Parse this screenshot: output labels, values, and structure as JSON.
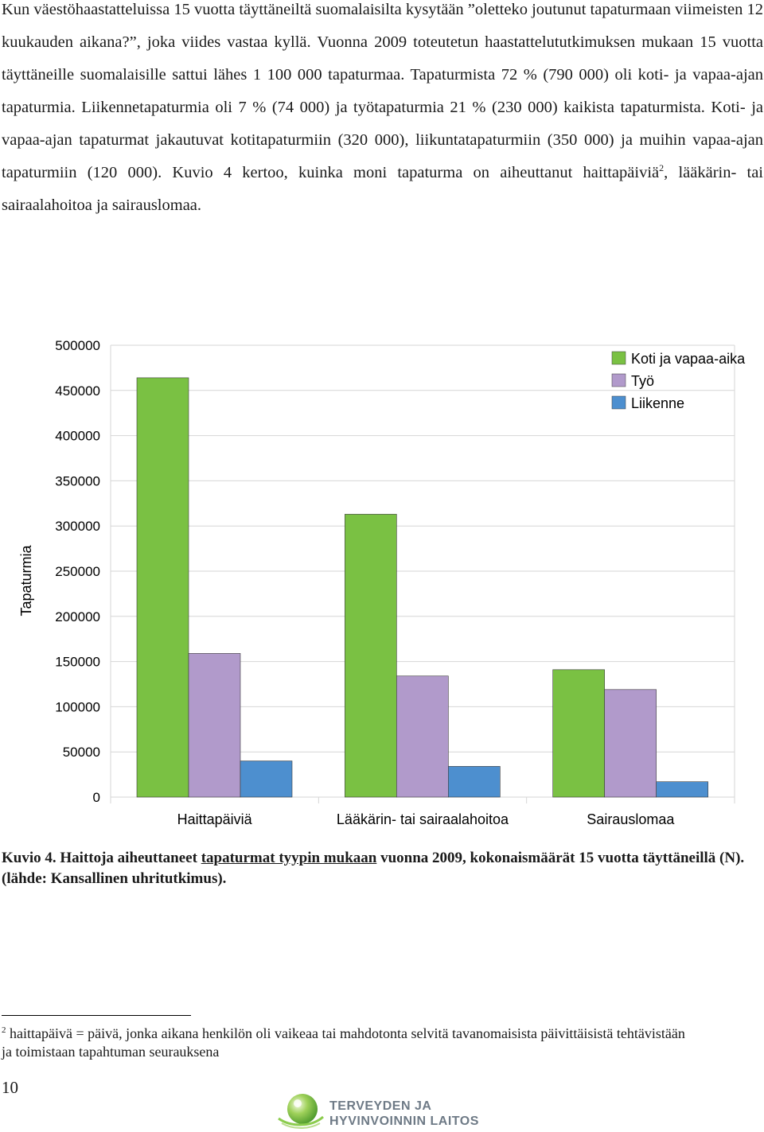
{
  "body_text": {
    "p1": "Kun väestöhaastatteluissa 15 vuotta täyttäneiltä suomalaisilta kysytään ”oletteko joutunut tapaturmaan viimeisten 12 kuukauden aikana?”, joka viides vastaa kyllä. Vuonna 2009 toteutetun haastattelututkimuksen mukaan 15 vuotta täyttäneille suomalaisille sattui lähes 1 100 000 tapaturmaa. Tapaturmista 72 % (790 000) oli koti- ja vapaa-ajan tapaturmia. Liikennetapaturmia oli 7 % (74 000) ja työtapaturmia 21 % (230 000) kaikista tapaturmista. Koti- ja vapaa-ajan tapaturmat jakautuvat kotitapaturmiin (320 000), liikuntatapaturmiin (350 000) ja muihin vapaa-ajan tapaturmiin (120 000). Kuvio 4 kertoo, kuinka moni tapaturma on aiheuttanut haittapäiviä",
    "sup_ref": "2",
    "p1_end": ", lääkärin- tai sairaalahoitoa ja sairauslomaa."
  },
  "chart_data": {
    "type": "bar",
    "categories": [
      "Haittapäiviä",
      "Lääkärin- tai sairaalahoitoa",
      "Sairauslomaa"
    ],
    "series": [
      {
        "name": "Koti ja vapaa-aika",
        "color": "#7ac143",
        "values": [
          464000,
          313000,
          141000
        ]
      },
      {
        "name": "Työ",
        "color": "#b19acb",
        "values": [
          159000,
          134000,
          119000
        ]
      },
      {
        "name": "Liikenne",
        "color": "#4d8fcf",
        "values": [
          40000,
          34000,
          17000
        ]
      }
    ],
    "ylabel": "Tapaturmia",
    "xlabel": "",
    "ylim": [
      0,
      500000
    ],
    "yticks": [
      "0",
      "50000",
      "100000",
      "150000",
      "200000",
      "250000",
      "300000",
      "350000",
      "400000",
      "450000",
      "500000"
    ],
    "grid": true,
    "legend_position": "top-right"
  },
  "caption": {
    "prefix": "Kuvio 4. Haittoja aiheuttaneet ",
    "underlined": "tapaturmat tyypin mukaan",
    "suffix": " vuonna 2009, kokonaismäärät 15 vuotta täyttäneillä (N). (lähde: Kansallinen uhritutkimus)."
  },
  "footnote": {
    "number": "2",
    "text": " haittapäivä = päivä, jonka aikana henkilön oli vaikeaa tai mahdotonta selvitä tavanomaisista päivittäisistä tehtävistään ja toimistaan tapahtuman seurauksena"
  },
  "page_number": "10",
  "logo": {
    "line1": "TERVEYDEN JA",
    "line2": "HYVINVOINNIN LAITOS",
    "icon": "thl-logo-icon"
  }
}
